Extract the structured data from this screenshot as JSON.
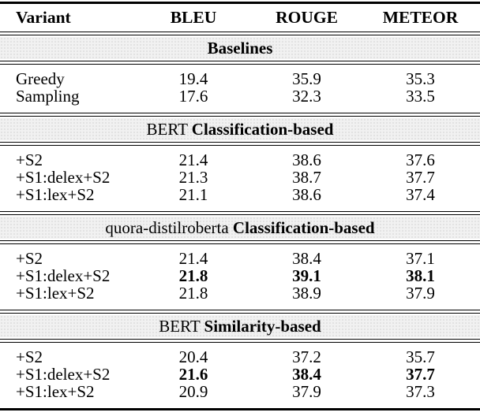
{
  "table": {
    "columns": {
      "variant": "Variant",
      "bleu": "BLEU",
      "rouge": "ROUGE",
      "meteor": "METEOR"
    },
    "sections": [
      {
        "label_plain": "",
        "label_bold": "Baselines",
        "rows": [
          {
            "variant": "Greedy",
            "row_bold": false,
            "values": [
              "19.4",
              "35.9",
              "35.3"
            ]
          },
          {
            "variant": "Sampling",
            "row_bold": false,
            "values": [
              "17.6",
              "32.3",
              "33.5"
            ]
          }
        ]
      },
      {
        "label_plain": "BERT ",
        "label_bold": "Classification-based",
        "rows": [
          {
            "variant": "+S2",
            "row_bold": false,
            "values": [
              "21.4",
              "38.6",
              "37.6"
            ]
          },
          {
            "variant": "+S1:delex+S2",
            "row_bold": false,
            "values": [
              "21.3",
              "38.7",
              "37.7"
            ]
          },
          {
            "variant": "+S1:lex+S2",
            "row_bold": false,
            "values": [
              "21.1",
              "38.6",
              "37.4"
            ]
          }
        ]
      },
      {
        "label_plain": "quora-distilroberta ",
        "label_bold": "Classification-based",
        "rows": [
          {
            "variant": "+S2",
            "row_bold": false,
            "values": [
              "21.4",
              "38.4",
              "37.1"
            ]
          },
          {
            "variant": "+S1:delex+S2",
            "row_bold": true,
            "values": [
              "21.8",
              "39.1",
              "38.1"
            ]
          },
          {
            "variant": "+S1:lex+S2",
            "row_bold": false,
            "values": [
              "21.8",
              "38.9",
              "37.9"
            ]
          }
        ]
      },
      {
        "label_plain": "BERT ",
        "label_bold": "Similarity-based",
        "rows": [
          {
            "variant": "+S2",
            "row_bold": false,
            "values": [
              "20.4",
              "37.2",
              "35.7"
            ]
          },
          {
            "variant": "+S1:delex+S2",
            "row_bold": true,
            "values": [
              "21.6",
              "38.4",
              "37.7"
            ]
          },
          {
            "variant": "+S1:lex+S2",
            "row_bold": false,
            "values": [
              "20.9",
              "37.9",
              "37.3"
            ]
          }
        ]
      }
    ],
    "colors": {
      "rule": "#000000",
      "band_background": "#f1f1f1",
      "text": "#000000"
    }
  }
}
